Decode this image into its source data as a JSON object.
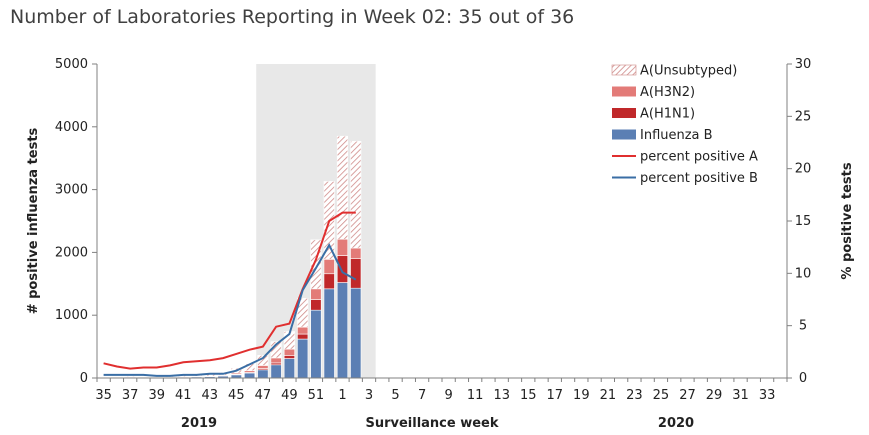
{
  "title": "Number of Laboratories Reporting in Week 02: 35 out of 36",
  "chart_data": {
    "type": "bar",
    "title": "Number of Laboratories Reporting in Week 02: 35 out of 36",
    "xlabel": "Surveillance  week",
    "ylabel_left": "# positive influenza tests",
    "ylabel_right": "% positive tests",
    "ylim_left": [
      0,
      5000
    ],
    "ylim_right": [
      0,
      30
    ],
    "yticks_left": [
      "0",
      "1000",
      "2000",
      "3000",
      "4000",
      "5000"
    ],
    "yticks_right": [
      "0",
      "5",
      "10",
      "15",
      "20",
      "25",
      "30"
    ],
    "weeks": [
      35,
      36,
      37,
      38,
      39,
      40,
      41,
      42,
      43,
      44,
      45,
      46,
      47,
      48,
      49,
      50,
      51,
      52,
      1,
      2,
      3,
      4,
      5,
      6,
      7,
      8,
      9,
      10,
      11,
      12,
      13,
      14,
      15,
      16,
      17,
      18,
      19,
      20,
      21,
      22,
      23,
      24,
      25,
      26,
      27,
      28,
      29,
      30,
      31,
      32,
      33,
      34
    ],
    "xtick_labels": [
      "35",
      "37",
      "39",
      "41",
      "43",
      "45",
      "47",
      "49",
      "51",
      "1",
      "3",
      "5",
      "7",
      "9",
      "11",
      "13",
      "15",
      "17",
      "19",
      "21",
      "23",
      "25",
      "27",
      "29",
      "31",
      "33"
    ],
    "year_labels": [
      "2019",
      "2020"
    ],
    "shaded_region": {
      "from_week": 47,
      "to_week": 3
    },
    "stack_order": [
      "Influenza B",
      "A(H1N1)",
      "A(H3N2)",
      "A(Unsubtyped)"
    ],
    "series": [
      {
        "name": "Influenza B",
        "color": "#5b7fb4",
        "values": [
          10,
          12,
          15,
          15,
          12,
          10,
          15,
          18,
          20,
          30,
          50,
          80,
          130,
          210,
          310,
          620,
          1080,
          1420,
          1520,
          1430
        ]
      },
      {
        "name": "A(H1N1)",
        "color": "#c0282a",
        "values": [
          2,
          2,
          3,
          2,
          2,
          2,
          3,
          3,
          4,
          5,
          8,
          12,
          20,
          30,
          50,
          80,
          170,
          240,
          430,
          470
        ]
      },
      {
        "name": "A(H3N2)",
        "color": "#e37b78",
        "values": [
          3,
          3,
          4,
          3,
          3,
          3,
          5,
          6,
          8,
          12,
          20,
          25,
          50,
          80,
          100,
          110,
          170,
          230,
          260,
          170
        ]
      },
      {
        "name": "A(Unsubtyped)",
        "color": "#d29694",
        "values": [
          10,
          10,
          12,
          10,
          10,
          12,
          20,
          25,
          30,
          40,
          80,
          110,
          160,
          260,
          280,
          460,
          780,
          1240,
          1640,
          1700
        ]
      }
    ],
    "lines": [
      {
        "name": "percent positive A",
        "color": "#e02f2f",
        "values": [
          1.4,
          1.1,
          0.9,
          1.0,
          1.0,
          1.2,
          1.5,
          1.6,
          1.7,
          1.9,
          2.3,
          2.7,
          3.0,
          4.9,
          5.2,
          8.5,
          11.3,
          15.0,
          15.8,
          15.8
        ]
      },
      {
        "name": "percent positive B",
        "color": "#3a6ea5",
        "values": [
          0.3,
          0.3,
          0.3,
          0.3,
          0.2,
          0.2,
          0.3,
          0.3,
          0.4,
          0.4,
          0.7,
          1.3,
          1.9,
          3.2,
          4.2,
          8.4,
          10.5,
          12.7,
          10.1,
          9.4
        ]
      }
    ],
    "legend": {
      "position": "top-right",
      "entries": [
        {
          "label": "A(Unsubtyped)",
          "kind": "hatch",
          "color": "#d29694"
        },
        {
          "label": "A(H3N2)",
          "kind": "box",
          "color": "#e37b78"
        },
        {
          "label": "A(H1N1)",
          "kind": "box",
          "color": "#c0282a"
        },
        {
          "label": "Influenza B",
          "kind": "box",
          "color": "#5b7fb4"
        },
        {
          "label": "percent positive A",
          "kind": "line",
          "color": "#e02f2f"
        },
        {
          "label": "percent positive B",
          "kind": "line",
          "color": "#3a6ea5"
        }
      ]
    },
    "grid": false
  }
}
